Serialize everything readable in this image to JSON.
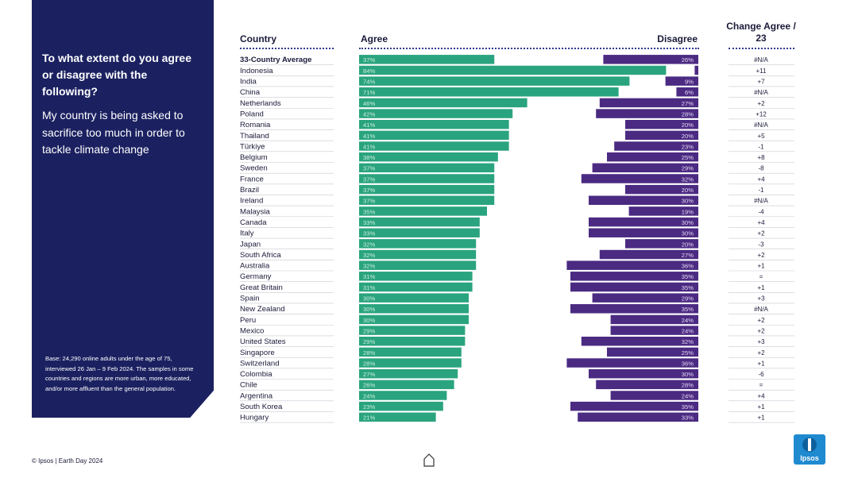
{
  "panel": {
    "question": "To what extent do you agree or disagree with the following?",
    "statement": "My country is being asked to sacrifice too much in order to tackle climate change",
    "base": "Base: 24,290 online adults under the age of 75, interviewed 26 Jan – 9 Feb 2024. The samples in some countries and regions are more urban, more educated, and/or more affluent than the general population."
  },
  "headers": {
    "country": "Country",
    "agree": "Agree",
    "disagree": "Disagree",
    "change": "Change Agree / 23"
  },
  "footer": "© Ipsos | Earth Day 2024",
  "logo_text": "Ipsos",
  "colors": {
    "agree": "#2aa47e",
    "disagree": "#4b2a82",
    "panel": "#1b2160",
    "logo": "#1f8ad0"
  },
  "chart_data": {
    "type": "bar",
    "title": "To what extent do you agree or disagree with the following? My country is being asked to sacrifice too much in order to tackle climate change",
    "unit": "%",
    "xlim": [
      0,
      100
    ],
    "categories": [
      "33-Country Average",
      "Indonesia",
      "India",
      "China",
      "Netherlands",
      "Poland",
      "Romania",
      "Thailand",
      "Türkiye",
      "Belgium",
      "Sweden",
      "France",
      "Brazil",
      "Ireland",
      "Malaysia",
      "Canada",
      "Italy",
      "Japan",
      "South Africa",
      "Australia",
      "Germany",
      "Great Britain",
      "Spain",
      "New Zealand",
      "Peru",
      "Mexico",
      "United States",
      "Singapore",
      "Switzerland",
      "Colombia",
      "Chile",
      "Argentina",
      "South Korea",
      "Hungary"
    ],
    "series": [
      {
        "name": "Agree",
        "values": [
          37,
          84,
          74,
          71,
          46,
          42,
          41,
          41,
          41,
          38,
          37,
          37,
          37,
          37,
          35,
          33,
          33,
          32,
          32,
          32,
          31,
          31,
          30,
          30,
          30,
          29,
          29,
          28,
          28,
          27,
          26,
          24,
          23,
          21
        ]
      },
      {
        "name": "Disagree",
        "values": [
          26,
          1,
          9,
          6,
          27,
          28,
          20,
          20,
          23,
          25,
          29,
          32,
          20,
          30,
          19,
          30,
          30,
          20,
          27,
          36,
          35,
          35,
          29,
          35,
          24,
          24,
          32,
          25,
          36,
          30,
          28,
          24,
          35,
          33
        ]
      }
    ],
    "agree_labels": [
      "37%",
      "84%",
      "74%",
      "71%",
      "46%",
      "42%",
      "41%",
      "41%",
      "41%",
      "38%",
      "37%",
      "37%",
      "37%",
      "37%",
      "35%",
      "33%",
      "33%",
      "32%",
      "32%",
      "32%",
      "31%",
      "31%",
      "30%",
      "30%",
      "30%",
      "29%",
      "29%",
      "28%",
      "28%",
      "27%",
      "26%",
      "24%",
      "23%",
      "21%"
    ],
    "disagree_labels": [
      "26%",
      "",
      "9%",
      "6%",
      "27%",
      "28%",
      "20%",
      "20%",
      "23%",
      "25%",
      "29%",
      "32%",
      "20%",
      "30%",
      "19%",
      "30%",
      "30%",
      "20%",
      "27%",
      "36%",
      "35%",
      "35%",
      "29%",
      "35%",
      "24%",
      "24%",
      "32%",
      "25%",
      "36%",
      "30%",
      "28%",
      "24%",
      "35%",
      "33%"
    ],
    "change_agree_vs_23": [
      "#N/A",
      "+11",
      "+7",
      "#N/A",
      "+2",
      "+12",
      "#N/A",
      "+5",
      "-1",
      "+8",
      "-8",
      "+4",
      "-1",
      "#N/A",
      "-4",
      "+4",
      "+2",
      "-3",
      "+2",
      "+1",
      "=",
      "+1",
      "+3",
      "#N/A",
      "+2",
      "+2",
      "+3",
      "+2",
      "+1",
      "-6",
      "=",
      "+4",
      "+1",
      "+1"
    ]
  }
}
